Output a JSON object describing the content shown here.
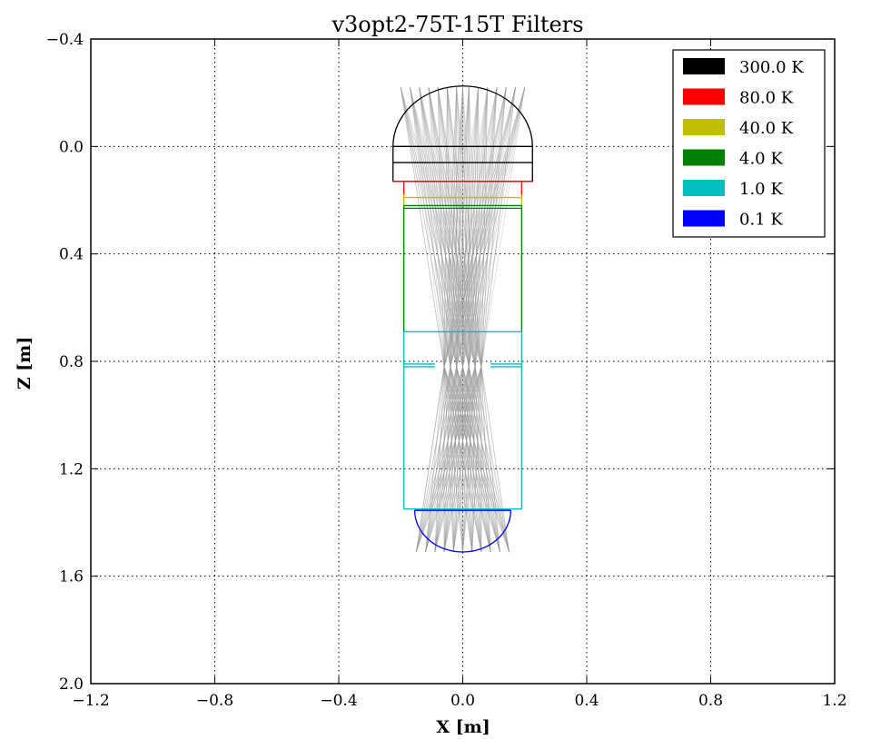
{
  "chart_data": {
    "type": "line",
    "title": "v3opt2-75T-15T Filters",
    "xlabel": "X [m]",
    "ylabel": "Z [m]",
    "xlim": [
      -1.2,
      1.2
    ],
    "ylim_inverted": [
      2.0,
      -0.4
    ],
    "x_ticks": [
      -1.2,
      -0.8,
      -0.4,
      0.0,
      0.4,
      0.8,
      1.2
    ],
    "y_ticks": [
      -0.4,
      0.0,
      0.4,
      0.8,
      1.2,
      1.6,
      2.0
    ],
    "x_tick_labels": [
      "−1.2",
      "−0.8",
      "−0.4",
      "0.0",
      "0.4",
      "0.8",
      "1.2"
    ],
    "y_tick_labels": [
      "−0.4",
      "0.0",
      "0.4",
      "0.8",
      "1.2",
      "1.6",
      "2.0"
    ],
    "grid": true,
    "legend_position": "top-right",
    "series": [
      {
        "name": "300.0 K",
        "color": "#000000",
        "segments": [
          [
            [
              -0.225,
              0.0
            ],
            [
              0.225,
              0.0
            ]
          ],
          [
            [
              -0.225,
              0.06
            ],
            [
              0.225,
              0.06
            ]
          ],
          [
            [
              -0.225,
              0.0
            ],
            [
              -0.225,
              0.13
            ],
            [
              0.225,
              0.13
            ],
            [
              0.225,
              0.0
            ]
          ]
        ],
        "arc": {
          "cx": 0.0,
          "cz": 0.0,
          "r": 0.225,
          "side": "up"
        }
      },
      {
        "name": "80.0 K",
        "color": "#ff0000",
        "segments": [
          [
            [
              -0.19,
              0.13
            ],
            [
              -0.19,
              0.18
            ]
          ],
          [
            [
              0.19,
              0.13
            ],
            [
              0.19,
              0.18
            ]
          ],
          [
            [
              -0.225,
              0.13
            ],
            [
              0.225,
              0.13
            ]
          ]
        ]
      },
      {
        "name": "40.0 K",
        "color": "#bfbf00",
        "segments": [
          [
            [
              -0.19,
              0.18
            ],
            [
              -0.19,
              0.22
            ]
          ],
          [
            [
              0.19,
              0.18
            ],
            [
              0.19,
              0.22
            ]
          ],
          [
            [
              -0.19,
              0.19
            ],
            [
              0.19,
              0.19
            ]
          ]
        ]
      },
      {
        "name": "4.0 K",
        "color": "#008000",
        "segments": [
          [
            [
              -0.19,
              0.22
            ],
            [
              0.19,
              0.22
            ]
          ],
          [
            [
              -0.19,
              0.23
            ],
            [
              0.19,
              0.23
            ]
          ],
          [
            [
              -0.19,
              0.22
            ],
            [
              -0.19,
              0.69
            ]
          ],
          [
            [
              0.19,
              0.22
            ],
            [
              0.19,
              0.69
            ]
          ]
        ]
      },
      {
        "name": "1.0 K",
        "color": "#00bfbf",
        "segments": [
          [
            [
              -0.19,
              0.69
            ],
            [
              0.19,
              0.69
            ]
          ],
          [
            [
              -0.19,
              0.69
            ],
            [
              -0.19,
              1.35
            ]
          ],
          [
            [
              0.19,
              0.69
            ],
            [
              0.19,
              1.35
            ]
          ],
          [
            [
              -0.19,
              0.81
            ],
            [
              -0.09,
              0.81
            ]
          ],
          [
            [
              0.09,
              0.81
            ],
            [
              0.19,
              0.81
            ]
          ],
          [
            [
              -0.19,
              0.82
            ],
            [
              -0.09,
              0.82
            ]
          ],
          [
            [
              0.09,
              0.82
            ],
            [
              0.19,
              0.82
            ]
          ],
          [
            [
              -0.19,
              1.35
            ],
            [
              0.19,
              1.35
            ]
          ]
        ]
      },
      {
        "name": "0.1 K",
        "color": "#0000ff",
        "segments": [
          [
            [
              -0.155,
              1.355
            ],
            [
              0.155,
              1.355
            ]
          ]
        ],
        "arc": {
          "cx": 0.0,
          "cz": 1.355,
          "r": 0.155,
          "side": "down"
        }
      }
    ],
    "rays": {
      "color": "#999999",
      "opacity": 0.35,
      "top_z": -0.22,
      "mid_z": 0.82,
      "bottom_z": 1.51,
      "top_x": [
        -0.2,
        -0.17,
        -0.14,
        -0.11,
        -0.08,
        -0.05,
        -0.02,
        0.0,
        0.02,
        0.05,
        0.08,
        0.11,
        0.14,
        0.17,
        0.2
      ],
      "mid_x": [
        -0.06,
        -0.04,
        -0.02,
        0.0,
        0.02,
        0.04,
        0.06
      ],
      "bottom_x": [
        -0.15,
        -0.12,
        -0.09,
        -0.06,
        -0.03,
        0.0,
        0.03,
        0.06,
        0.09,
        0.12,
        0.15
      ]
    },
    "legend": [
      {
        "label": "300.0 K",
        "color": "#000000"
      },
      {
        "label": "80.0 K",
        "color": "#ff0000"
      },
      {
        "label": "40.0 K",
        "color": "#bfbf00"
      },
      {
        "label": "4.0 K",
        "color": "#008000"
      },
      {
        "label": "1.0 K",
        "color": "#00bfbf"
      },
      {
        "label": "0.1 K",
        "color": "#0000ff"
      }
    ]
  }
}
